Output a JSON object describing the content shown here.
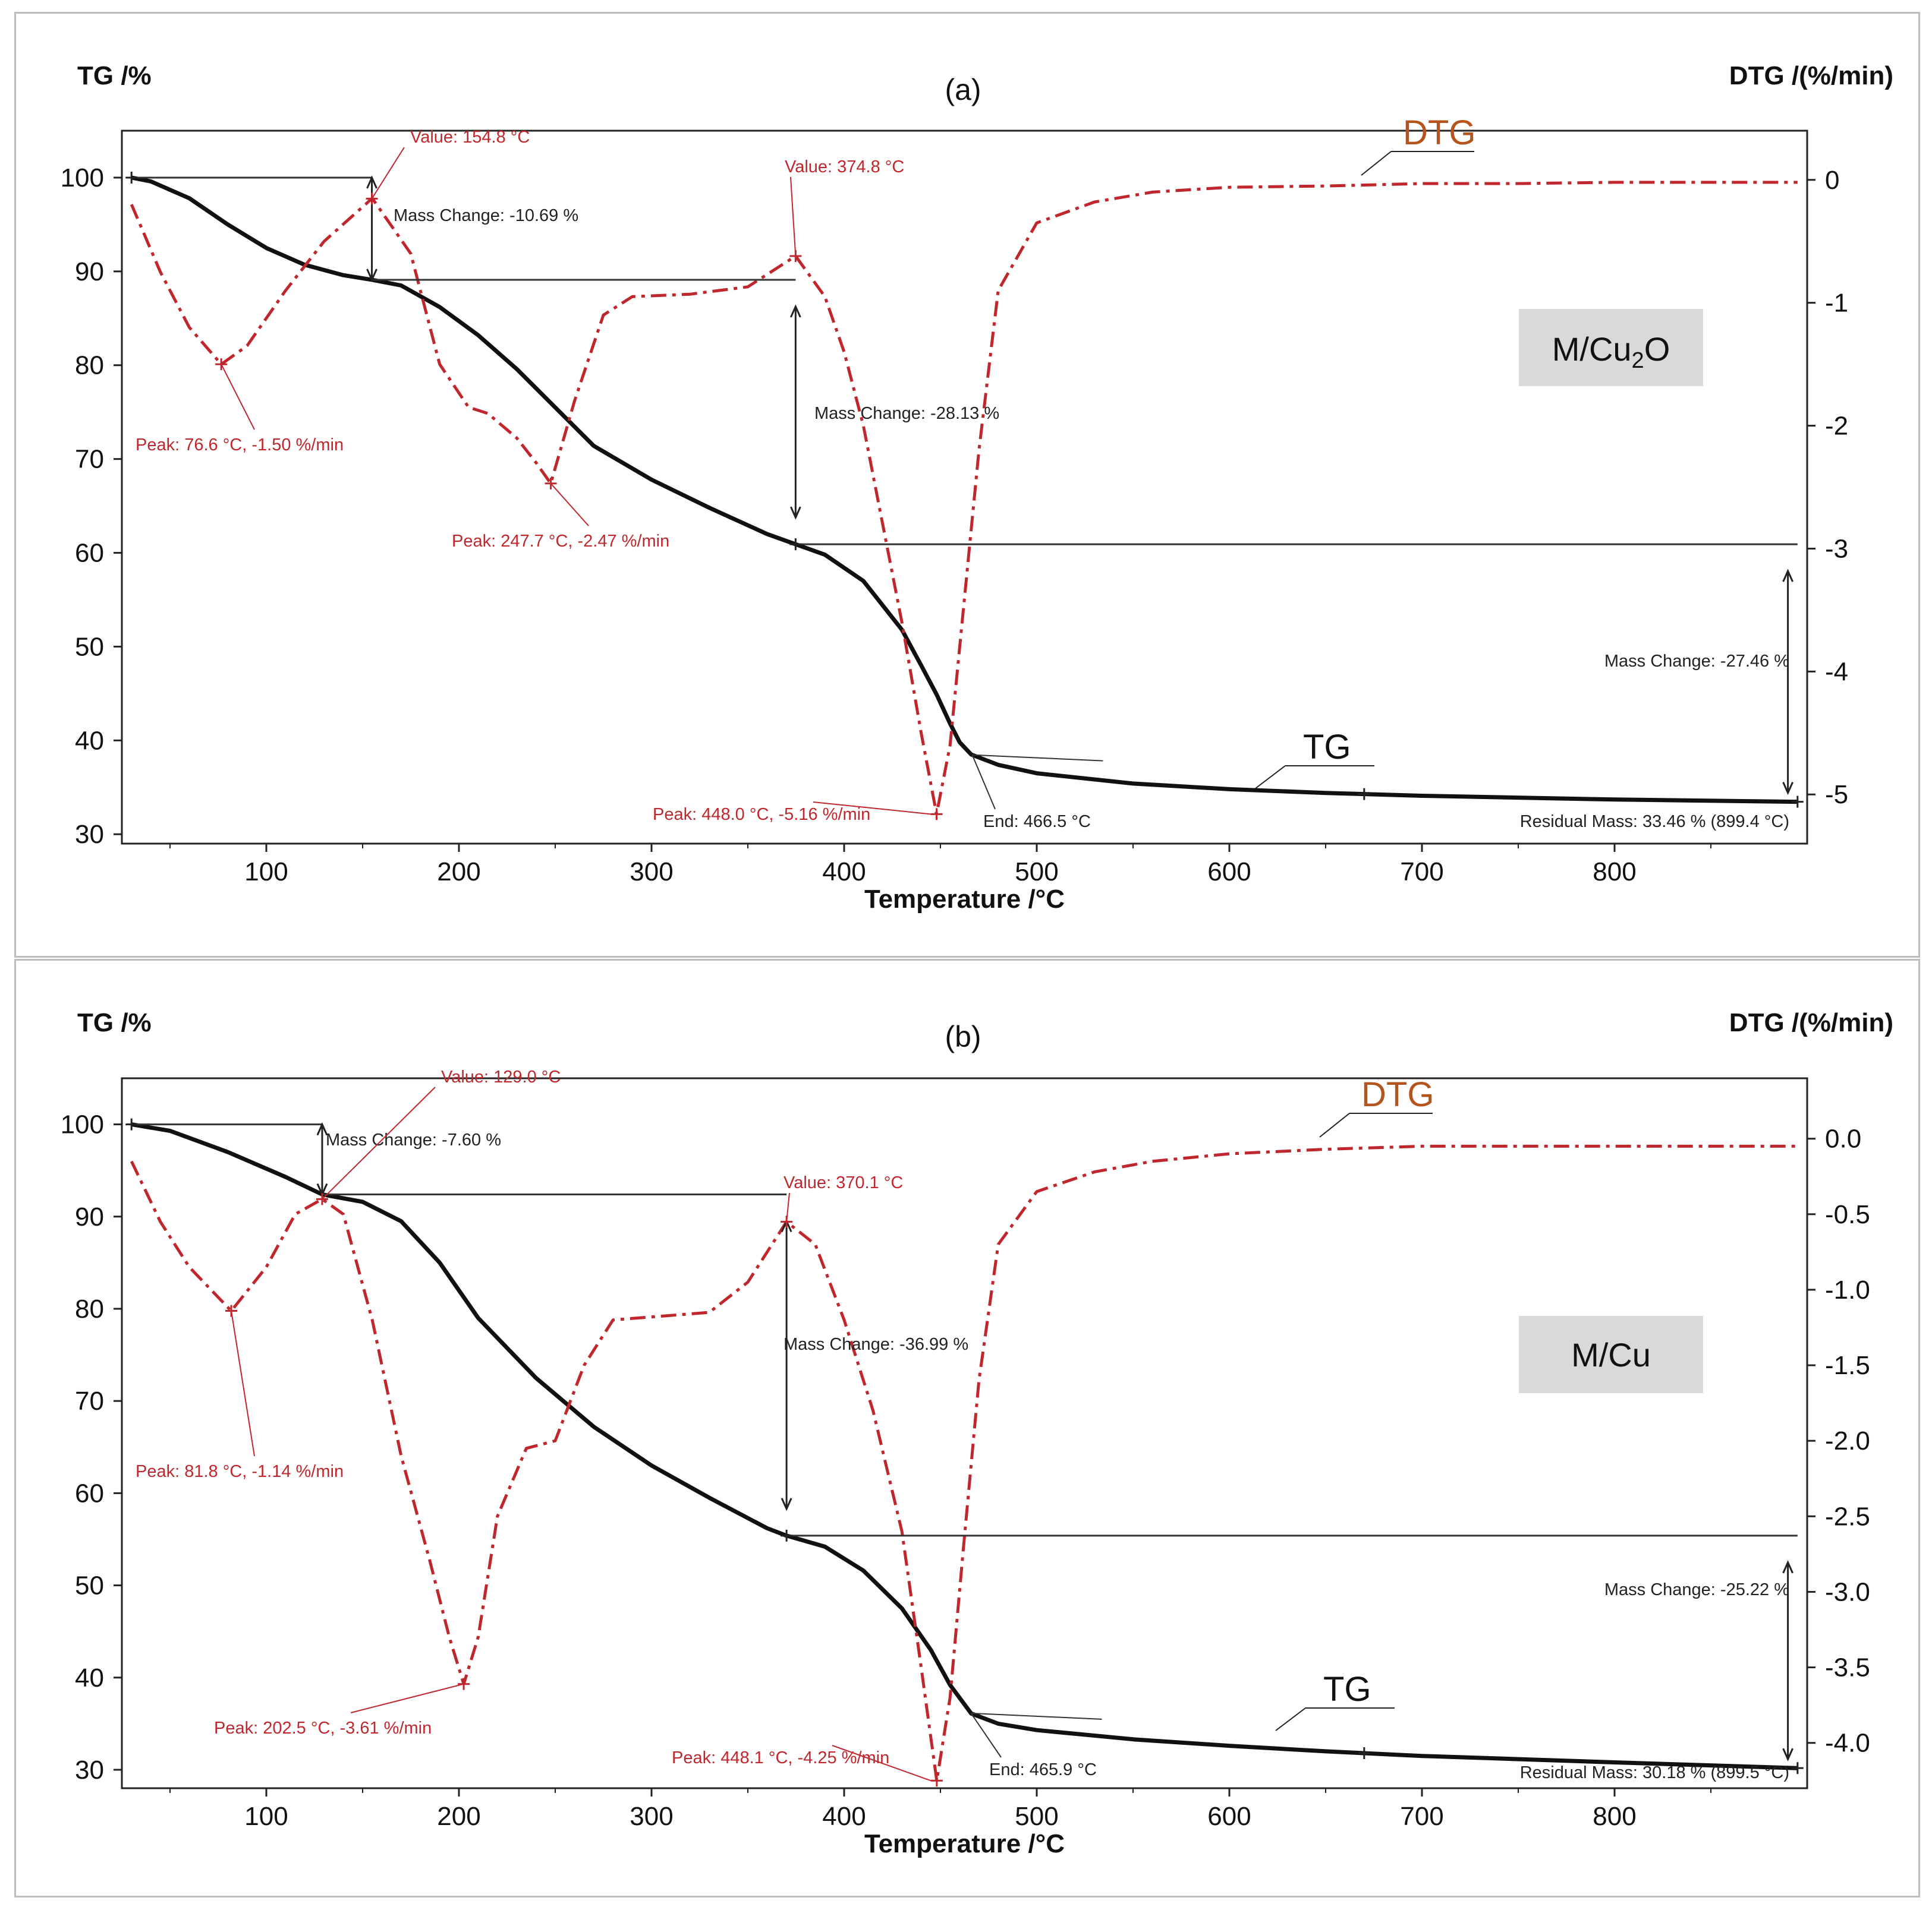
{
  "colors": {
    "tg": "#111111",
    "dtg": "#c0272d",
    "dtg_label": "#b5541c",
    "box": "#d9d9d9"
  },
  "chart_data": [
    {
      "type": "line",
      "panel_label": "(a)",
      "sample": "M/Cu2O",
      "xlabel": "Temperature /°C",
      "ylabel_left": "TG /%",
      "ylabel_right": "DTG /(%/min)",
      "xlim": [
        25,
        900
      ],
      "ylim_left": [
        29,
        105
      ],
      "ylim_right": [
        -5.4,
        0.4
      ],
      "xticks": [
        "100",
        "200",
        "300",
        "400",
        "500",
        "600",
        "700",
        "800"
      ],
      "yticks_left": [
        "100",
        "90",
        "80",
        "70",
        "60",
        "50",
        "40",
        "30"
      ],
      "yticks_right": [
        "0",
        "-1",
        "-2",
        "-3",
        "-4",
        "-5"
      ],
      "series": [
        {
          "name": "TG",
          "axis": "left",
          "x": [
            30,
            40,
            60,
            80,
            100,
            120,
            140,
            155,
            170,
            190,
            210,
            230,
            250,
            270,
            300,
            330,
            360,
            375,
            390,
            410,
            430,
            440,
            448,
            455,
            460,
            466,
            480,
            500,
            550,
            600,
            650,
            700,
            800,
            895
          ],
          "y": [
            100,
            99.6,
            97.8,
            95.0,
            92.5,
            90.7,
            89.6,
            89.1,
            88.5,
            86.2,
            83.2,
            79.6,
            75.5,
            71.4,
            67.8,
            64.8,
            62.0,
            60.9,
            59.8,
            57.0,
            51.8,
            48.0,
            44.9,
            41.8,
            39.8,
            38.5,
            37.4,
            36.5,
            35.4,
            34.8,
            34.4,
            34.1,
            33.7,
            33.46
          ]
        },
        {
          "name": "DTG",
          "axis": "right",
          "x": [
            30,
            45,
            60,
            76.6,
            90,
            110,
            130,
            155,
            175,
            190,
            205,
            215,
            230,
            240,
            247.7,
            260,
            275,
            290,
            320,
            350,
            374.8,
            390,
            400,
            410,
            420,
            430,
            440,
            448,
            455,
            460,
            470,
            480,
            500,
            530,
            560,
            600,
            650,
            700,
            750,
            800,
            850,
            895
          ],
          "y": [
            -0.2,
            -0.75,
            -1.2,
            -1.5,
            -1.35,
            -0.9,
            -0.5,
            -0.15,
            -0.6,
            -1.5,
            -1.85,
            -1.9,
            -2.1,
            -2.3,
            -2.47,
            -1.8,
            -1.1,
            -0.95,
            -0.93,
            -0.87,
            -0.62,
            -0.95,
            -1.4,
            -2.0,
            -2.8,
            -3.6,
            -4.5,
            -5.16,
            -4.6,
            -3.8,
            -2.2,
            -0.9,
            -0.35,
            -0.18,
            -0.1,
            -0.06,
            -0.05,
            -0.03,
            -0.03,
            -0.02,
            -0.02,
            -0.02
          ]
        }
      ],
      "curve_labels": {
        "dtg": "DTG",
        "tg": "TG"
      },
      "annotations": {
        "value_1": "Value: 154.8 °C",
        "mass_change_1": "Mass Change: -10.69 %",
        "value_2": "Value: 374.8 °C",
        "mass_change_2": "Mass Change: -28.13 %",
        "peak_1": "Peak: 76.6 °C, -1.50 %/min",
        "peak_2": "Peak: 247.7 °C, -2.47 %/min",
        "peak_3": "Peak: 448.0 °C, -5.16 %/min",
        "end": "End: 466.5 °C",
        "mass_change_3": "Mass Change: -27.46 %",
        "residual": "Residual Mass: 33.46 % (899.4 °C)"
      }
    },
    {
      "type": "line",
      "panel_label": "(b)",
      "sample": "M/Cu",
      "xlabel": "Temperature /°C",
      "ylabel_left": "TG /%",
      "ylabel_right": "DTG /(%/min)",
      "xlim": [
        25,
        900
      ],
      "ylim_left": [
        28,
        105
      ],
      "ylim_right": [
        -4.3,
        0.4
      ],
      "xticks": [
        "100",
        "200",
        "300",
        "400",
        "500",
        "600",
        "700",
        "800"
      ],
      "yticks_left": [
        "100",
        "90",
        "80",
        "70",
        "60",
        "50",
        "40",
        "30"
      ],
      "yticks_right": [
        "0.0",
        "-0.5",
        "-1.0",
        "-1.5",
        "-2.0",
        "-2.5",
        "-3.0",
        "-3.5",
        "-4.0"
      ],
      "series": [
        {
          "name": "TG",
          "axis": "left",
          "x": [
            30,
            50,
            80,
            110,
            129,
            150,
            170,
            190,
            210,
            240,
            270,
            300,
            330,
            360,
            370,
            390,
            410,
            430,
            445,
            455,
            466,
            480,
            500,
            550,
            600,
            650,
            700,
            800,
            895
          ],
          "y": [
            100,
            99.3,
            97.0,
            94.3,
            92.4,
            91.6,
            89.5,
            85.0,
            79.0,
            72.5,
            67.2,
            63.0,
            59.5,
            56.2,
            55.4,
            54.2,
            51.6,
            47.5,
            43.0,
            39.2,
            36.1,
            35.0,
            34.3,
            33.3,
            32.6,
            32.0,
            31.5,
            30.8,
            30.18
          ]
        },
        {
          "name": "DTG",
          "axis": "right",
          "x": [
            30,
            45,
            60,
            81.8,
            100,
            115,
            129,
            140,
            155,
            170,
            185,
            195,
            202.5,
            210,
            220,
            235,
            250,
            265,
            280,
            300,
            330,
            350,
            370.1,
            385,
            400,
            415,
            430,
            440,
            448.1,
            455,
            462,
            470,
            480,
            500,
            530,
            560,
            600,
            650,
            700,
            750,
            800,
            850,
            895
          ],
          "y": [
            -0.15,
            -0.55,
            -0.85,
            -1.14,
            -0.85,
            -0.5,
            -0.4,
            -0.5,
            -1.2,
            -2.1,
            -2.8,
            -3.3,
            -3.61,
            -3.3,
            -2.5,
            -2.05,
            -2.0,
            -1.5,
            -1.2,
            -1.18,
            -1.15,
            -0.95,
            -0.55,
            -0.7,
            -1.2,
            -1.8,
            -2.6,
            -3.5,
            -4.25,
            -3.7,
            -2.7,
            -1.6,
            -0.7,
            -0.35,
            -0.22,
            -0.15,
            -0.1,
            -0.07,
            -0.05,
            -0.05,
            -0.05,
            -0.05,
            -0.05
          ]
        }
      ],
      "curve_labels": {
        "dtg": "DTG",
        "tg": "TG"
      },
      "annotations": {
        "value_1": "Value: 129.0 °C",
        "mass_change_1": "Mass Change: -7.60 %",
        "value_2": "Value: 370.1 °C",
        "mass_change_2": "Mass Change: -36.99 %",
        "peak_1": "Peak: 81.8 °C, -1.14 %/min",
        "peak_2": "Peak: 202.5 °C, -3.61 %/min",
        "peak_3": "Peak: 448.1 °C, -4.25 %/min",
        "end": "End: 465.9 °C",
        "mass_change_3": "Mass Change: -25.22 %",
        "residual": "Residual Mass: 30.18 % (899.5 °C)"
      }
    }
  ]
}
